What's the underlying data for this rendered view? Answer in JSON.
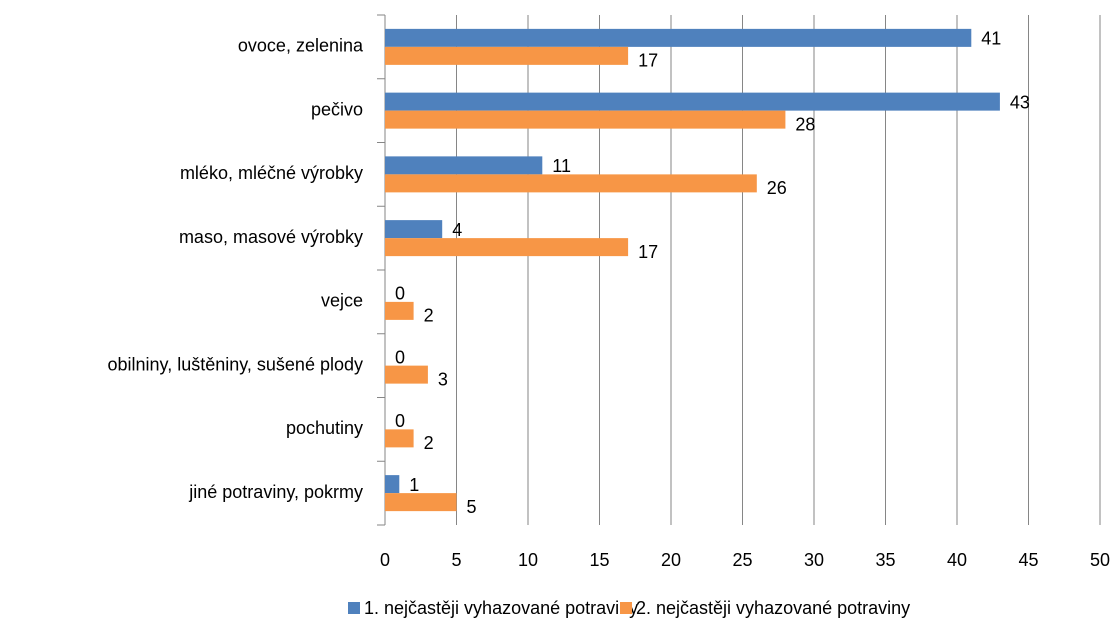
{
  "chart_data": {
    "type": "bar",
    "orientation": "horizontal",
    "categories": [
      "ovoce, zelenina",
      "pečivo",
      "mléko, mléčné výrobky",
      "maso, masové výrobky",
      "vejce",
      "obilniny, luštěniny, sušené plody",
      "pochutiny",
      "jiné potraviny, pokrmy"
    ],
    "series": [
      {
        "name": "1. nejčastěji vyhazované potraviny",
        "color": "#4f81bd",
        "values": [
          41,
          43,
          11,
          4,
          0,
          0,
          0,
          1
        ]
      },
      {
        "name": "2. nejčastěji vyhazované potraviny",
        "color": "#f79646",
        "values": [
          17,
          28,
          26,
          17,
          2,
          3,
          2,
          5
        ]
      }
    ],
    "xlim": [
      0,
      50
    ],
    "xticks": [
      0,
      5,
      10,
      15,
      20,
      25,
      30,
      35,
      40,
      45,
      50
    ],
    "grid": true,
    "legend": "bottom"
  }
}
